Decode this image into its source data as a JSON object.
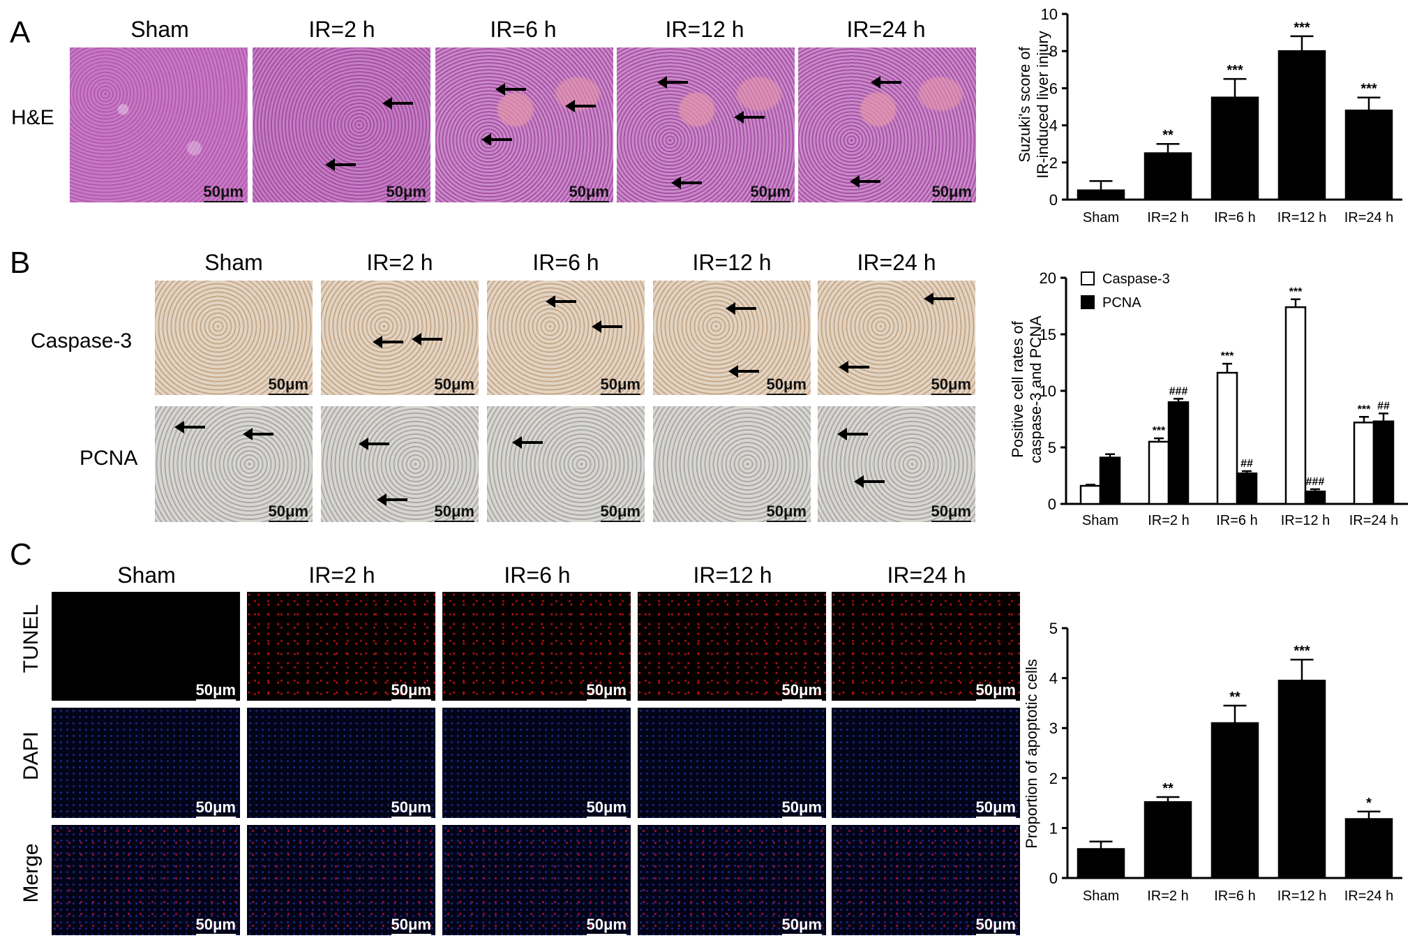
{
  "panels": {
    "A": {
      "letter": "A",
      "row_label": "H&E",
      "columns": [
        "Sham",
        "IR=2 h",
        "IR=6 h",
        "IR=12 h",
        "IR=24 h"
      ],
      "scale_bar": "50μm"
    },
    "B": {
      "letter": "B",
      "row_labels": [
        "Caspase-3",
        "PCNA"
      ],
      "columns": [
        "Sham",
        "IR=2 h",
        "IR=6 h",
        "IR=12 h",
        "IR=24 h"
      ],
      "scale_bar": "50μm"
    },
    "C": {
      "letter": "C",
      "row_labels": [
        "TUNEL",
        "DAPI",
        "Merge"
      ],
      "columns": [
        "Sham",
        "IR=2 h",
        "IR=6 h",
        "IR=12 h",
        "IR=24 h"
      ],
      "scale_bar": "50μm"
    }
  },
  "chart_data": [
    {
      "type": "bar",
      "panel": "A",
      "categories": [
        "Sham",
        "IR=2 h",
        "IR=6 h",
        "IR=12 h",
        "IR=24 h"
      ],
      "values": [
        0.5,
        2.5,
        5.5,
        8.0,
        4.8
      ],
      "errors": [
        0.5,
        0.5,
        1.0,
        0.8,
        0.7
      ],
      "annotations": [
        "",
        "**",
        "***",
        "***",
        "***"
      ],
      "ylabel": "Suzuki's score of IR-induced liver injury",
      "ylim": [
        0,
        10
      ],
      "yticks": [
        "0",
        "2",
        "4",
        "6",
        "8",
        "10"
      ]
    },
    {
      "type": "bar",
      "panel": "B",
      "categories": [
        "Sham",
        "IR=2 h",
        "IR=6 h",
        "IR=12 h",
        "IR=24 h"
      ],
      "series": [
        {
          "name": "Caspase-3",
          "values": [
            1.6,
            5.5,
            11.6,
            17.4,
            7.2
          ],
          "errors": [
            0.1,
            0.3,
            0.8,
            0.7,
            0.5
          ],
          "annotations": [
            "",
            "***",
            "***",
            "***",
            "***"
          ],
          "color": "#ffffff"
        },
        {
          "name": "PCNA",
          "values": [
            4.1,
            9.0,
            2.7,
            1.1,
            7.3
          ],
          "errors": [
            0.3,
            0.3,
            0.2,
            0.2,
            0.7
          ],
          "annotations": [
            "",
            "###",
            "##",
            "###",
            "##"
          ],
          "color": "#000000"
        }
      ],
      "ylabel": "Positive cell rates of caspase-3 and PCNA",
      "ylim": [
        0,
        20
      ],
      "yticks": [
        "0",
        "5",
        "10",
        "15",
        "20"
      ],
      "legend": "top-left"
    },
    {
      "type": "bar",
      "panel": "C",
      "categories": [
        "Sham",
        "IR=2 h",
        "IR=6 h",
        "IR=12 h",
        "IR=24 h"
      ],
      "values": [
        0.58,
        1.52,
        3.1,
        3.95,
        1.18
      ],
      "errors": [
        0.15,
        0.1,
        0.35,
        0.42,
        0.15
      ],
      "annotations": [
        "",
        "**",
        "**",
        "***",
        "*"
      ],
      "ylabel": "Proportion of apoptotic cells",
      "ylim": [
        0,
        5
      ],
      "yticks": [
        "0",
        "1",
        "2",
        "3",
        "4",
        "5"
      ]
    }
  ]
}
